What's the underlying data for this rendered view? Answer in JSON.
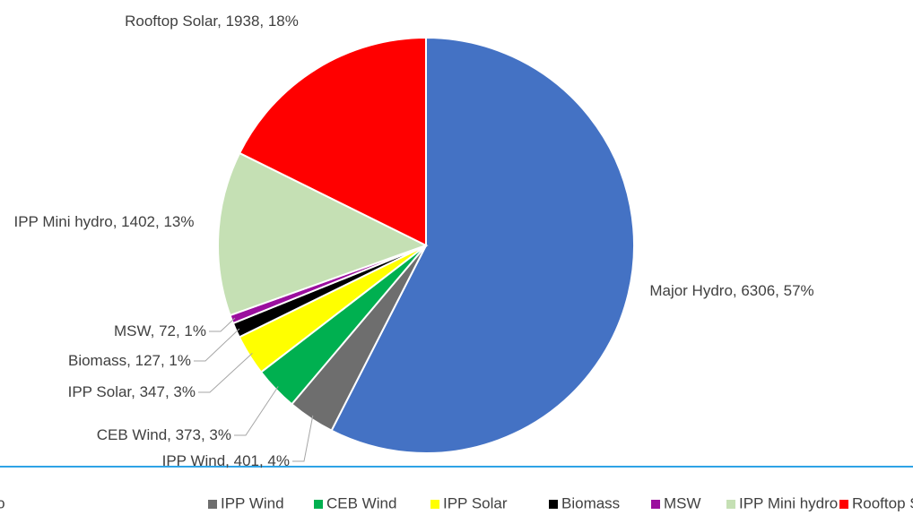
{
  "chart_data": {
    "type": "pie",
    "categories": [
      "Major Hydro",
      "IPP Wind",
      "CEB Wind",
      "IPP Solar",
      "Biomass",
      "MSW",
      "IPP Mini hydro",
      "Rooftop Solar"
    ],
    "values": [
      6306,
      401,
      373,
      347,
      127,
      72,
      1402,
      1938
    ],
    "value_labels": [
      "Major Hydro, 6306, 57%",
      "IPP Wind, 401, 4%",
      "CEB Wind, 373, 3%",
      "IPP Solar, 347, 3%",
      "Biomass, 127, 1%",
      "MSW, 72, 1%",
      "IPP Mini hydro, 1402, 13%",
      "Rooftop Solar, 1938, 18%"
    ],
    "colors": [
      "#4472c4",
      "#6e6e6e",
      "#00b050",
      "#ffff00",
      "#000000",
      "#9b0f9e",
      "#c5e0b4",
      "#ff0000"
    ],
    "legend": "bottom"
  }
}
